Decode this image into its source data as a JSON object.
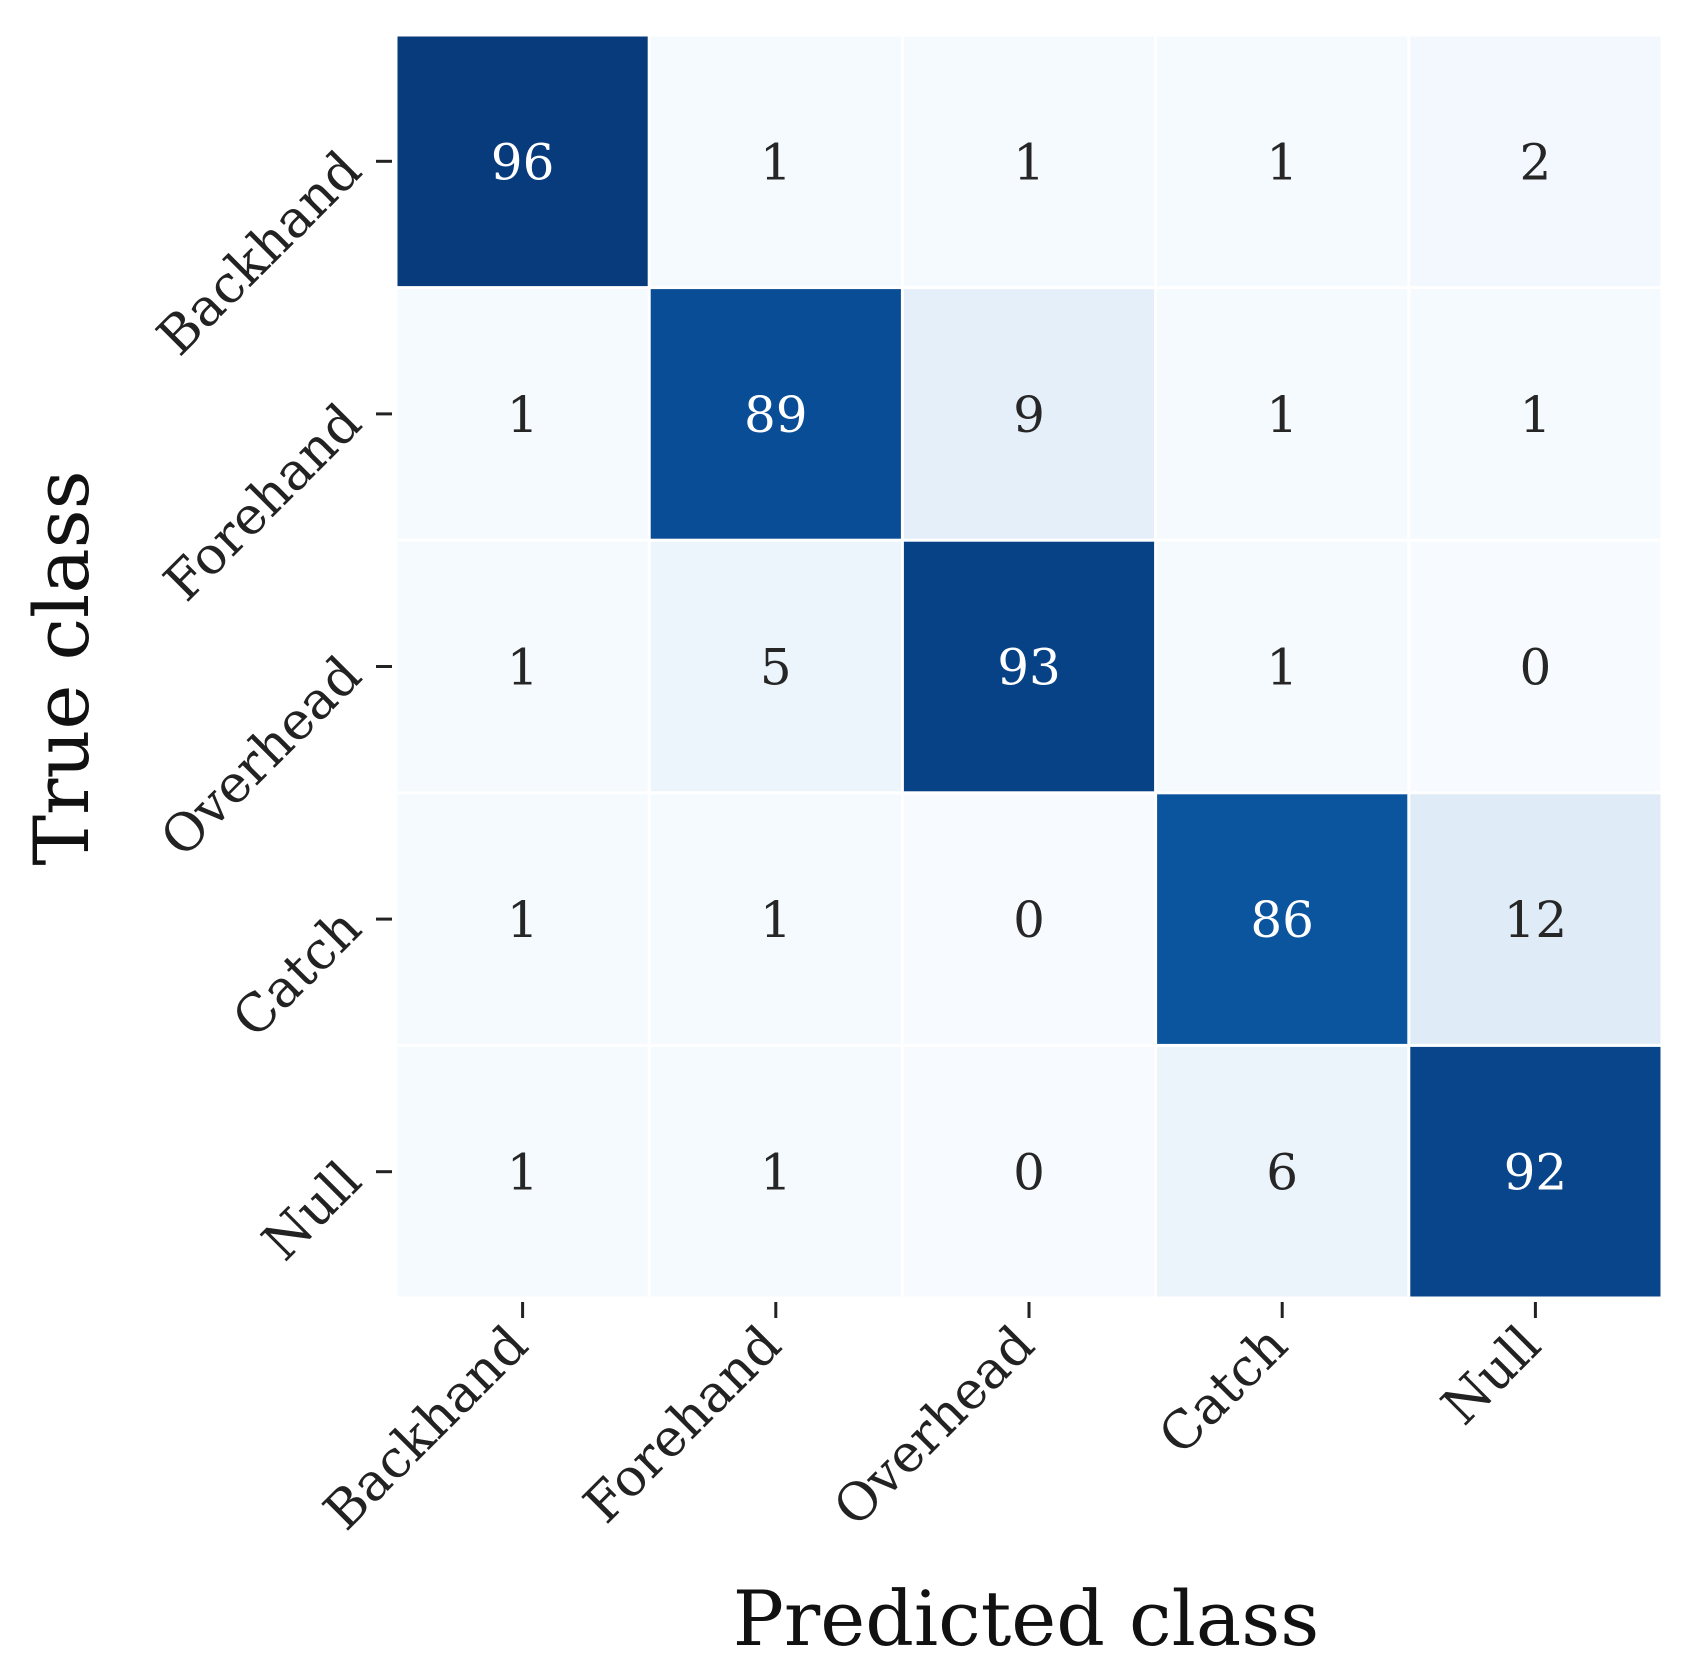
{
  "chart_data": {
    "type": "heatmap",
    "title": "",
    "xlabel": "Predicted class",
    "ylabel": "True class",
    "x_categories": [
      "Backhand",
      "Forehand",
      "Overhead",
      "Catch",
      "Null"
    ],
    "y_categories": [
      "Backhand",
      "Forehand",
      "Overhead",
      "Catch",
      "Null"
    ],
    "values": [
      [
        96,
        1,
        1,
        1,
        2
      ],
      [
        1,
        89,
        9,
        1,
        1
      ],
      [
        1,
        5,
        93,
        1,
        0
      ],
      [
        1,
        1,
        0,
        86,
        12
      ],
      [
        1,
        1,
        0,
        6,
        92
      ]
    ],
    "value_range": [
      0,
      100
    ],
    "colormap": "Blues",
    "color_low": "#f7fbff",
    "color_high": "#08306b",
    "text_color_light": "#ffffff",
    "text_color_dark": "#262626",
    "colorbar": false,
    "grid_line_color": "#ffffff"
  }
}
